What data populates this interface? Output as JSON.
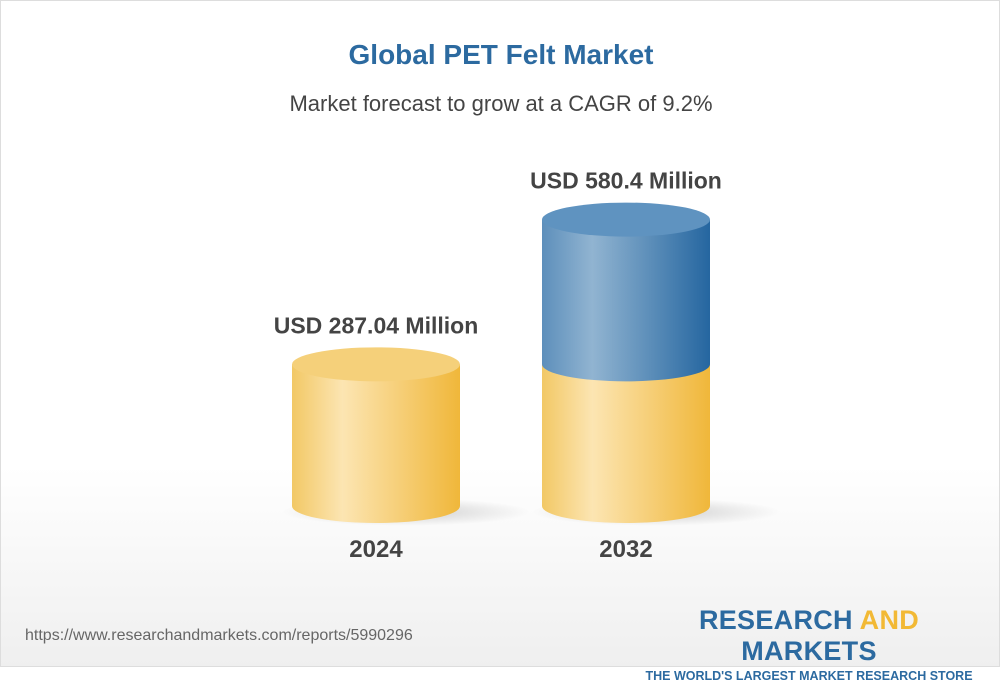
{
  "title": "Global PET Felt Market",
  "subtitle": "Market forecast to grow at a CAGR of 9.2%",
  "chart_data": {
    "type": "bar",
    "style": "3d-cylinder",
    "categories": [
      "2024",
      "2032"
    ],
    "values": [
      287.04,
      580.4
    ],
    "data_labels": [
      "USD 287.04 Million",
      "USD 580.4 Million"
    ],
    "unit": "USD Million",
    "cagr": "9.2%",
    "colors": {
      "base": "#f2c65a",
      "growth": "#2c6aa0"
    }
  },
  "footer": {
    "url": "https://www.researchandmarkets.com/reports/5990296",
    "logo_part1": "RESEARCH ",
    "logo_part2": "AND",
    "logo_part3": " MARKETS",
    "logo_tagline": "THE WORLD'S LARGEST MARKET RESEARCH STORE"
  }
}
